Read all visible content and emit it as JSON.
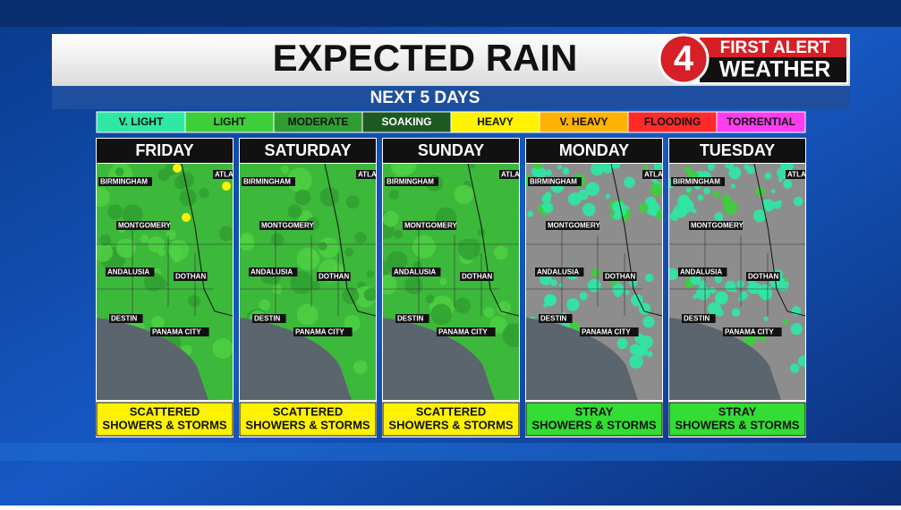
{
  "header": {
    "title": "EXPECTED RAIN",
    "subtitle": "NEXT 5 DAYS"
  },
  "logo": {
    "number": "4",
    "line1": "FIRST ALERT",
    "line2": "WEATHER"
  },
  "legend": [
    {
      "label": "V. LIGHT",
      "color": "#2ee8a4"
    },
    {
      "label": "LIGHT",
      "color": "#3ccf3a"
    },
    {
      "label": "MODERATE",
      "color": "#2f9e32"
    },
    {
      "label": "SOAKING",
      "color": "#1d5a22"
    },
    {
      "label": "HEAVY",
      "color": "#fff200"
    },
    {
      "label": "V. HEAVY",
      "color": "#ffb300"
    },
    {
      "label": "FLOODING",
      "color": "#ff2a2a"
    },
    {
      "label": "TORRENTIAL",
      "color": "#ff3df0"
    }
  ],
  "panels": [
    {
      "day": "FRIDAY",
      "cities": [
        "BIRMINGHAM",
        "ATLAN",
        "MONTGOMERY",
        "ANDALUSIA",
        "DOTHAN",
        "DESTIN",
        "PANAMA CITY"
      ],
      "caption": [
        "SCATTERED",
        "SHOWERS & STORMS"
      ],
      "caption_color": "#fff200"
    },
    {
      "day": "SATURDAY",
      "cities": [
        "BIRMINGHAM",
        "ATLAN",
        "MONTGOMERY",
        "ANDALUSIA",
        "DOTHAN",
        "DESTIN",
        "PANAMA CITY"
      ],
      "caption": [
        "SCATTERED",
        "SHOWERS & STORMS"
      ],
      "caption_color": "#fff200"
    },
    {
      "day": "SUNDAY",
      "cities": [
        "BIRMINGHAM",
        "ATLAN",
        "MONTGOMERY",
        "ANDALUSIA",
        "DOTHAN",
        "DESTIN",
        "PANAMA CITY"
      ],
      "caption": [
        "SCATTERED",
        "SHOWERS & STORMS"
      ],
      "caption_color": "#fff200"
    },
    {
      "day": "MONDAY",
      "cities": [
        "BIRMINGHAM",
        "ATLAN",
        "MONTGOMERY",
        "ANDALUSIA",
        "DOTHAN",
        "DESTIN",
        "PANAMA CITY"
      ],
      "caption": [
        "STRAY",
        "SHOWERS & STORMS"
      ],
      "caption_color": "#33dd33"
    },
    {
      "day": "TUESDAY",
      "cities": [
        "BIRMINGHAM",
        "ATLAN",
        "MONTGOMERY",
        "ANDALUSIA",
        "DOTHAN",
        "DESTIN",
        "PANAMA CITY"
      ],
      "caption": [
        "STRAY",
        "SHOWERS & STORMS"
      ],
      "caption_color": "#33dd33"
    }
  ]
}
